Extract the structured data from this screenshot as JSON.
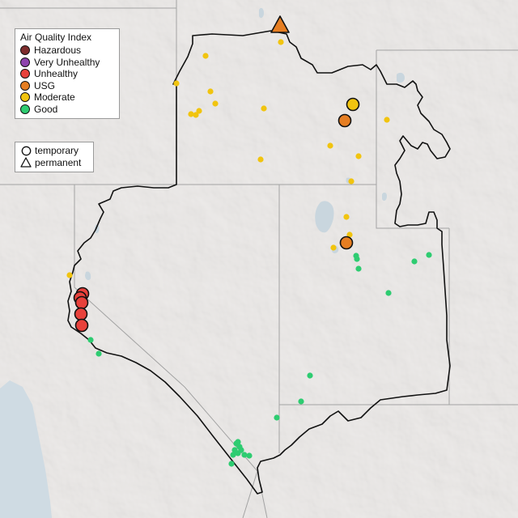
{
  "legend": {
    "title": "Air Quality Index",
    "categories": [
      {
        "label": "Hazardous",
        "color": "#7e2d2d"
      },
      {
        "label": "Very Unhealthy",
        "color": "#8e44ad"
      },
      {
        "label": "Unhealthy",
        "color": "#e8413b"
      },
      {
        "label": "USG",
        "color": "#e67e22"
      },
      {
        "label": "Moderate",
        "color": "#f1c40f"
      },
      {
        "label": "Good",
        "color": "#2ecc71"
      }
    ]
  },
  "monitor_legend": {
    "types": [
      {
        "label": "temporary",
        "shape": "circle"
      },
      {
        "label": "permanent",
        "shape": "triangle"
      }
    ]
  }
}
